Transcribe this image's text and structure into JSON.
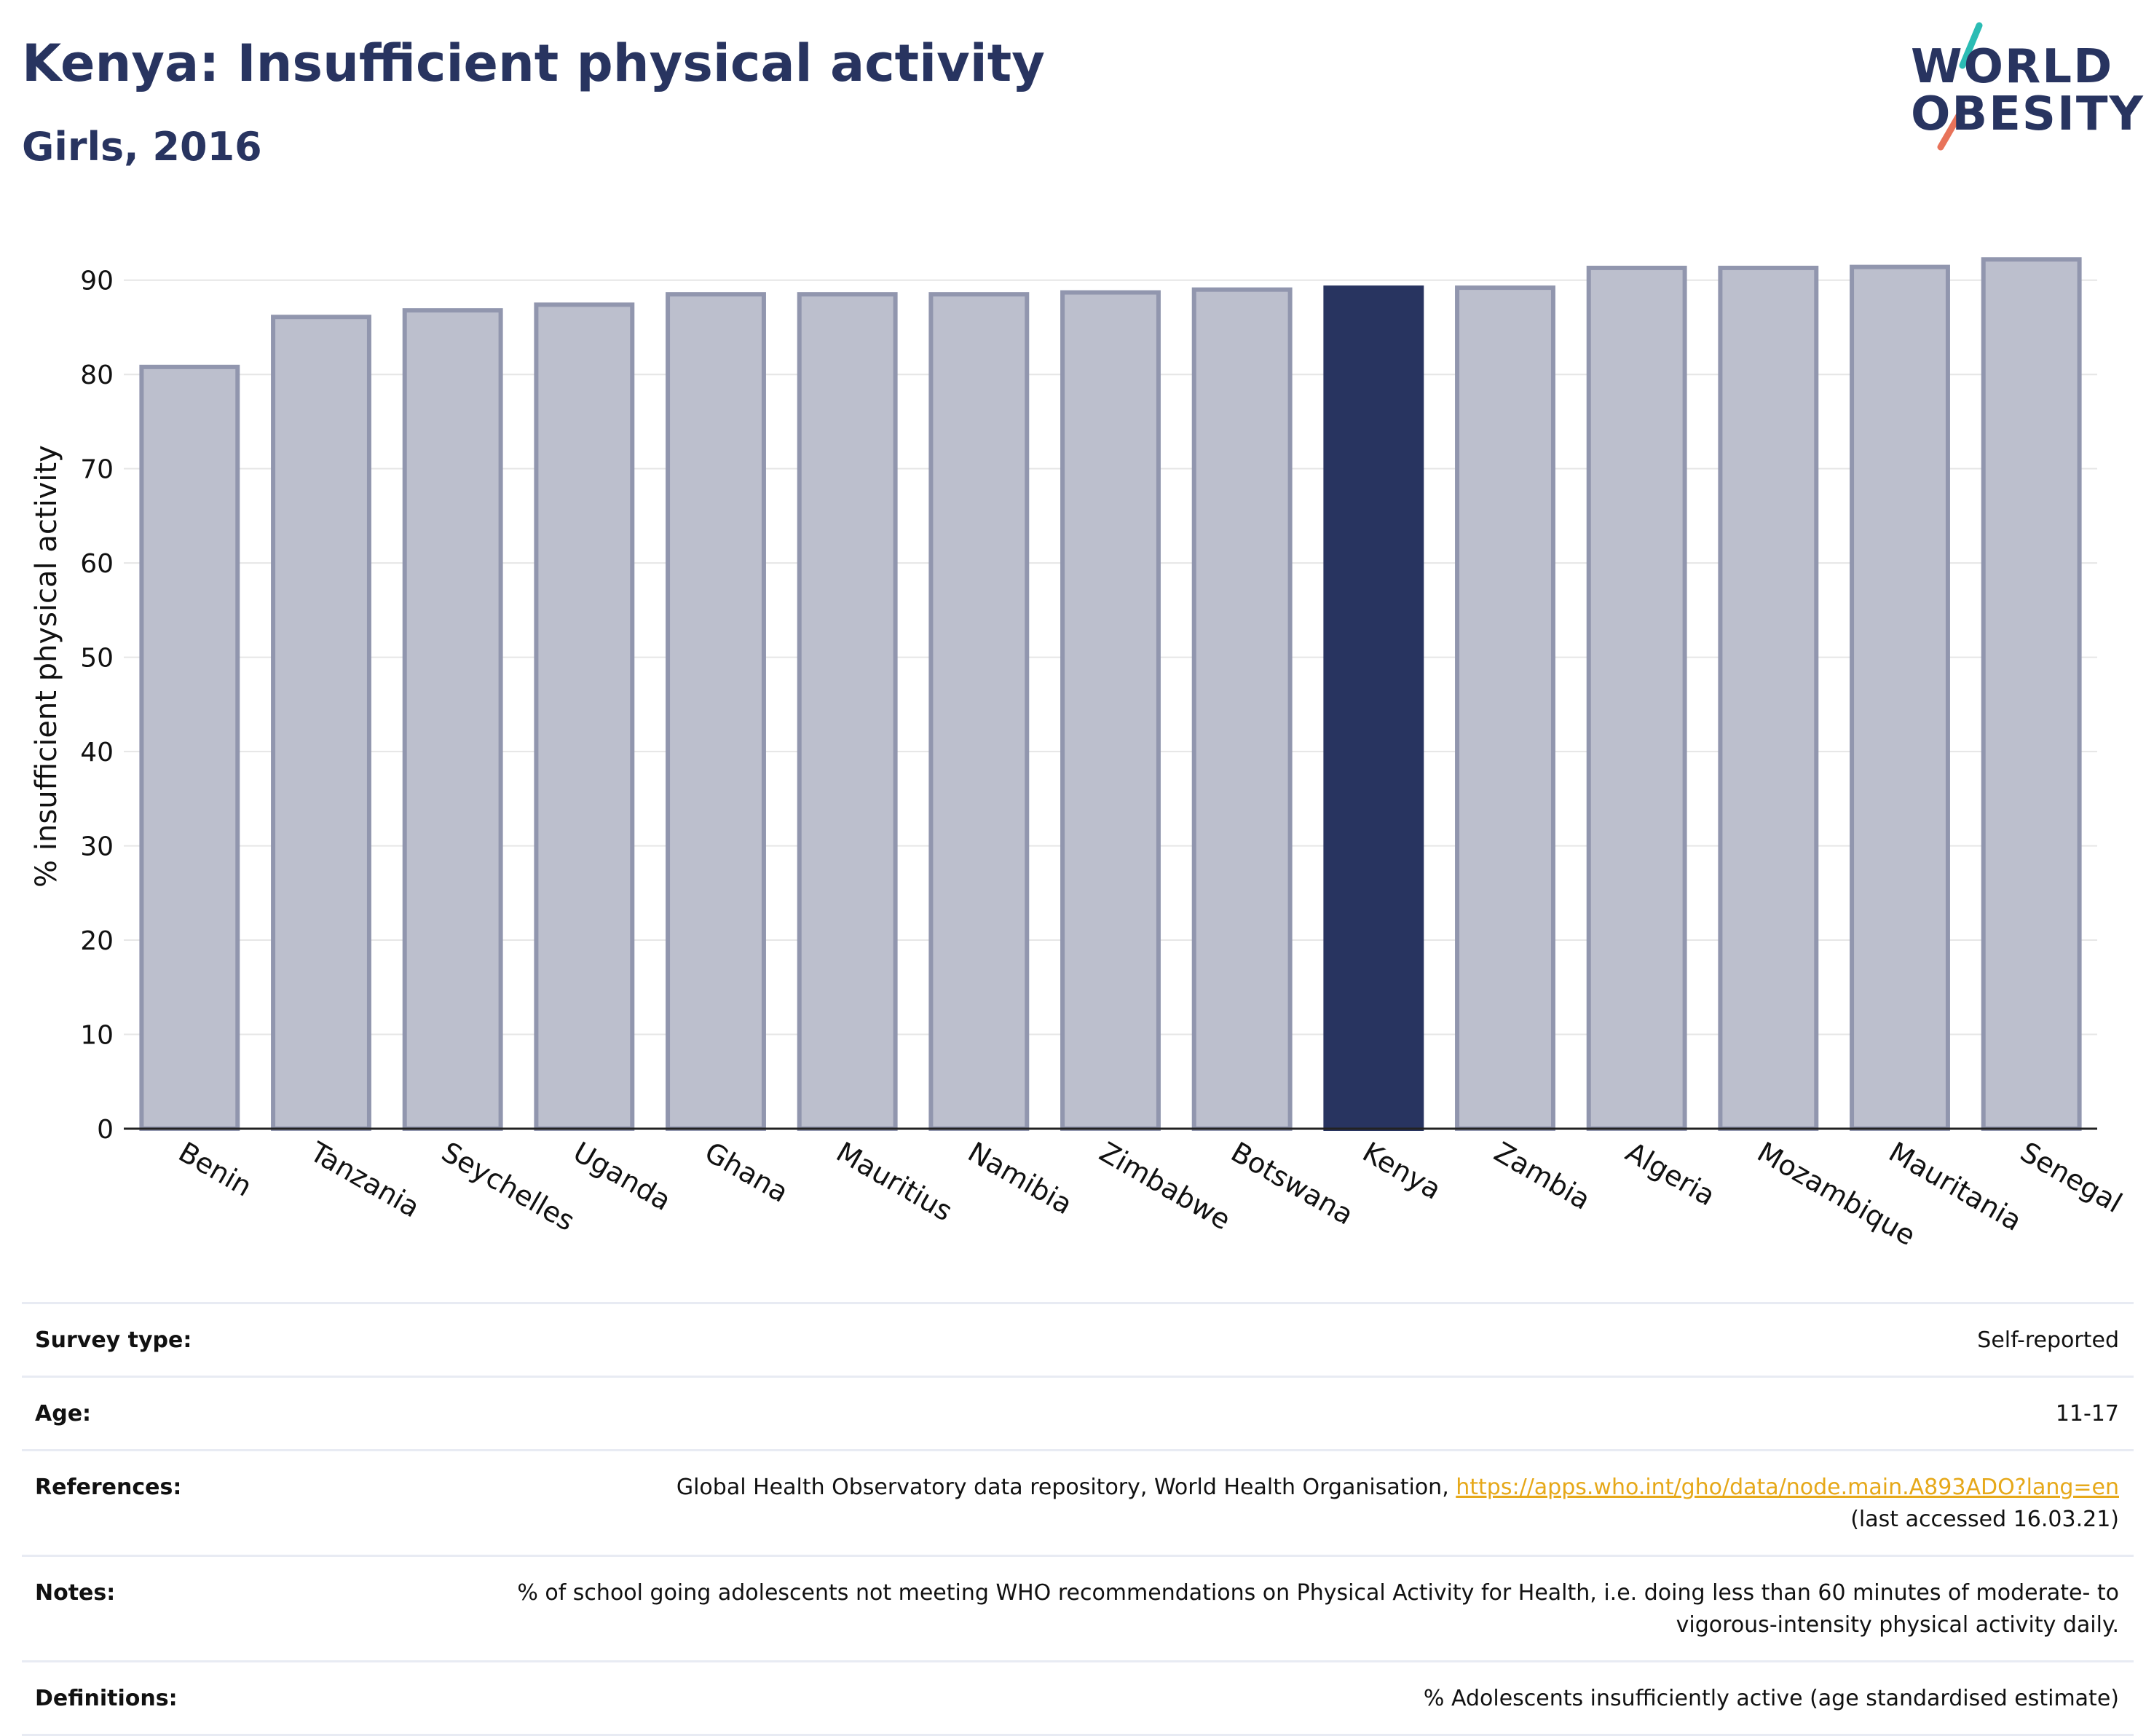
{
  "header": {
    "title": "Kenya: Insufficient physical activity",
    "subtitle": "Girls, 2016"
  },
  "logo": {
    "line1": "WORLD",
    "line2": "OBESITY"
  },
  "colors": {
    "bar": "#bcbfcd",
    "bar_border": "#9196ae",
    "highlight": "#283460",
    "grid": "#e6e6e6",
    "text": "#283460",
    "link": "#e6a819"
  },
  "chart_data": {
    "type": "bar",
    "title": "Kenya: Insufficient physical activity",
    "subtitle": "Girls, 2016",
    "xlabel": "",
    "ylabel": "% insufficient physical activity",
    "ylim": [
      0,
      95
    ],
    "yticks": [
      0,
      10,
      20,
      30,
      40,
      50,
      60,
      70,
      80,
      90
    ],
    "grid": true,
    "highlight": "Kenya",
    "categories": [
      "Benin",
      "Tanzania",
      "Seychelles",
      "Uganda",
      "Ghana",
      "Mauritius",
      "Namibia",
      "Zimbabwe",
      "Botswana",
      "Kenya",
      "Zambia",
      "Algeria",
      "Mozambique",
      "Mauritania",
      "Senegal"
    ],
    "values": [
      80.8,
      86.1,
      86.8,
      87.4,
      88.5,
      88.5,
      88.5,
      88.7,
      89.0,
      89.2,
      89.2,
      91.3,
      91.3,
      91.4,
      92.2
    ]
  },
  "meta": {
    "survey_type": {
      "label": "Survey type:",
      "value": "Self-reported"
    },
    "age": {
      "label": "Age:",
      "value": "11-17"
    },
    "references": {
      "label": "References:",
      "text": "Global Health Observatory data repository, World Health Organisation, ",
      "url": "https://apps.who.int/gho/data/node.main.A893ADO?lang=en",
      "accessed": "(last accessed 16.03.21)"
    },
    "notes": {
      "label": "Notes:",
      "value": "% of school going adolescents not meeting WHO recommendations on Physical Activity for Health, i.e. doing less than 60 minutes of moderate- to vigorous-intensity physical activity daily."
    },
    "definitions": {
      "label": "Definitions:",
      "value": "% Adolescents insufficiently active (age standardised estimate)"
    }
  }
}
